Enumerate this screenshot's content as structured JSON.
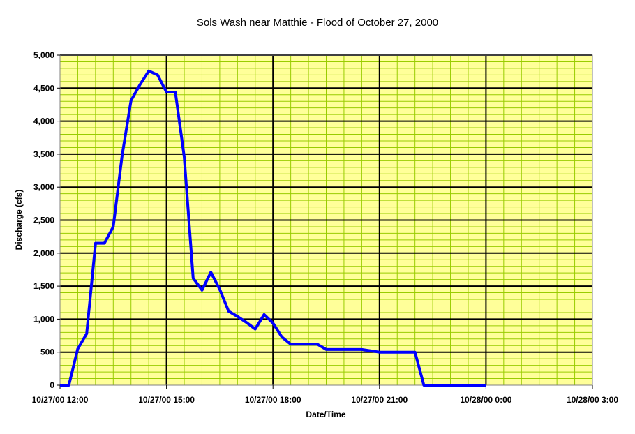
{
  "chart_data": {
    "type": "line",
    "title": "Sols Wash near Matthie - Flood of October 27, 2000",
    "xlabel": "Date/Time",
    "ylabel": "Discharge (cfs)",
    "x_unit": "hours",
    "xlim": [
      12,
      27
    ],
    "ylim": [
      0,
      5000
    ],
    "x_ticks": [
      12,
      15,
      18,
      21,
      24,
      27
    ],
    "x_tick_labels": [
      "10/27/00 12:00",
      "10/27/00 15:00",
      "10/27/00 18:00",
      "10/27/00 21:00",
      "10/28/00 0:00",
      "10/28/00 3:00"
    ],
    "y_ticks": [
      0,
      500,
      1000,
      1500,
      2000,
      2500,
      3000,
      3500,
      4000,
      4500,
      5000
    ],
    "y_tick_labels": [
      "0",
      "500",
      "1,000",
      "1,500",
      "2,000",
      "2,500",
      "3,000",
      "3,500",
      "4,000",
      "4,500",
      "5,000"
    ],
    "grid": true,
    "series_color": "#0000ff",
    "plot_bg": "#ffff99",
    "minor_grid_color": "#99cc00",
    "major_grid_color": "#000000",
    "series": [
      {
        "x": [
          12.0,
          12.25,
          12.5,
          12.75,
          13.0,
          13.25,
          13.5,
          13.75,
          14.0,
          14.25,
          14.5,
          14.75,
          15.0,
          15.25,
          15.5,
          15.75,
          16.0,
          16.25,
          16.5,
          16.75,
          17.0,
          17.25,
          17.5,
          17.75,
          18.0,
          18.25,
          18.5,
          19.25,
          19.5,
          20.5,
          21.0,
          22.0,
          22.25,
          24.0
        ],
        "y": [
          0,
          0,
          550,
          780,
          2150,
          2150,
          2400,
          3480,
          4310,
          4550,
          4760,
          4700,
          4440,
          4440,
          3460,
          1620,
          1440,
          1710,
          1450,
          1120,
          1040,
          950,
          850,
          1070,
          940,
          730,
          620,
          620,
          540,
          540,
          500,
          500,
          0,
          0
        ]
      }
    ]
  }
}
